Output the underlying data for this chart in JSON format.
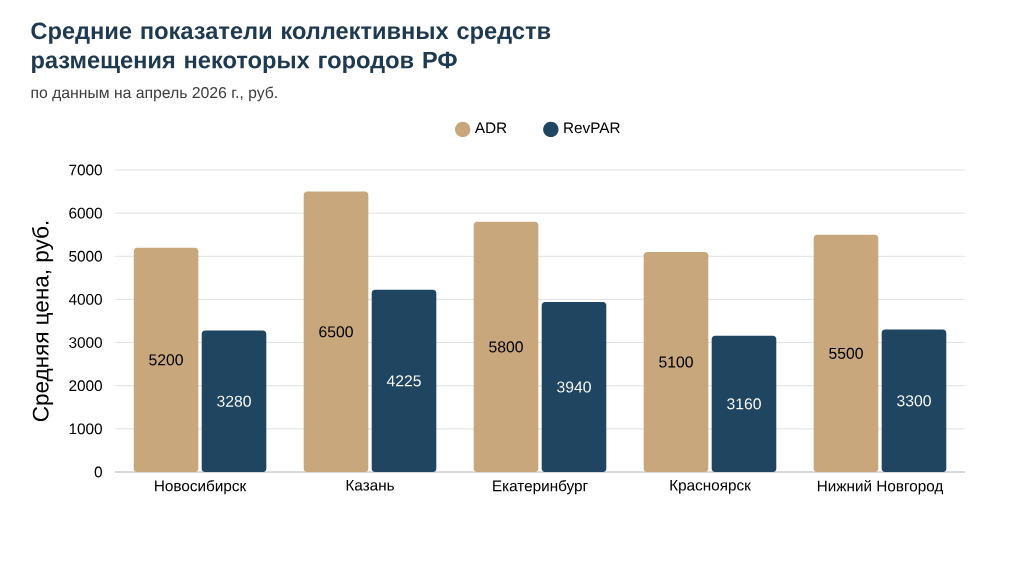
{
  "chart_data": {
    "type": "bar",
    "title": "Средние показатели коллективных средств размещения некоторых городов РФ",
    "subtitle": "по данным на апрель 2026 г., руб.",
    "ylabel": "Средняя цена, руб.",
    "categories": [
      "Новосибирск",
      "Казань",
      "Екатеринбург",
      "Красноярск",
      "Нижний Новгород"
    ],
    "series": [
      {
        "name": "ADR",
        "color": "#c9a77c",
        "values": [
          5200,
          6500,
          5800,
          5100,
          5500
        ]
      },
      {
        "name": "RevPAR",
        "color": "#1f4561",
        "values": [
          3280,
          4225,
          3940,
          3160,
          3300
        ]
      }
    ],
    "ylim": [
      0,
      7000
    ],
    "yticks": [
      0,
      1000,
      2000,
      3000,
      4000,
      5000,
      6000,
      7000
    ],
    "grid": "y",
    "legend": "top",
    "data_labels": true
  }
}
